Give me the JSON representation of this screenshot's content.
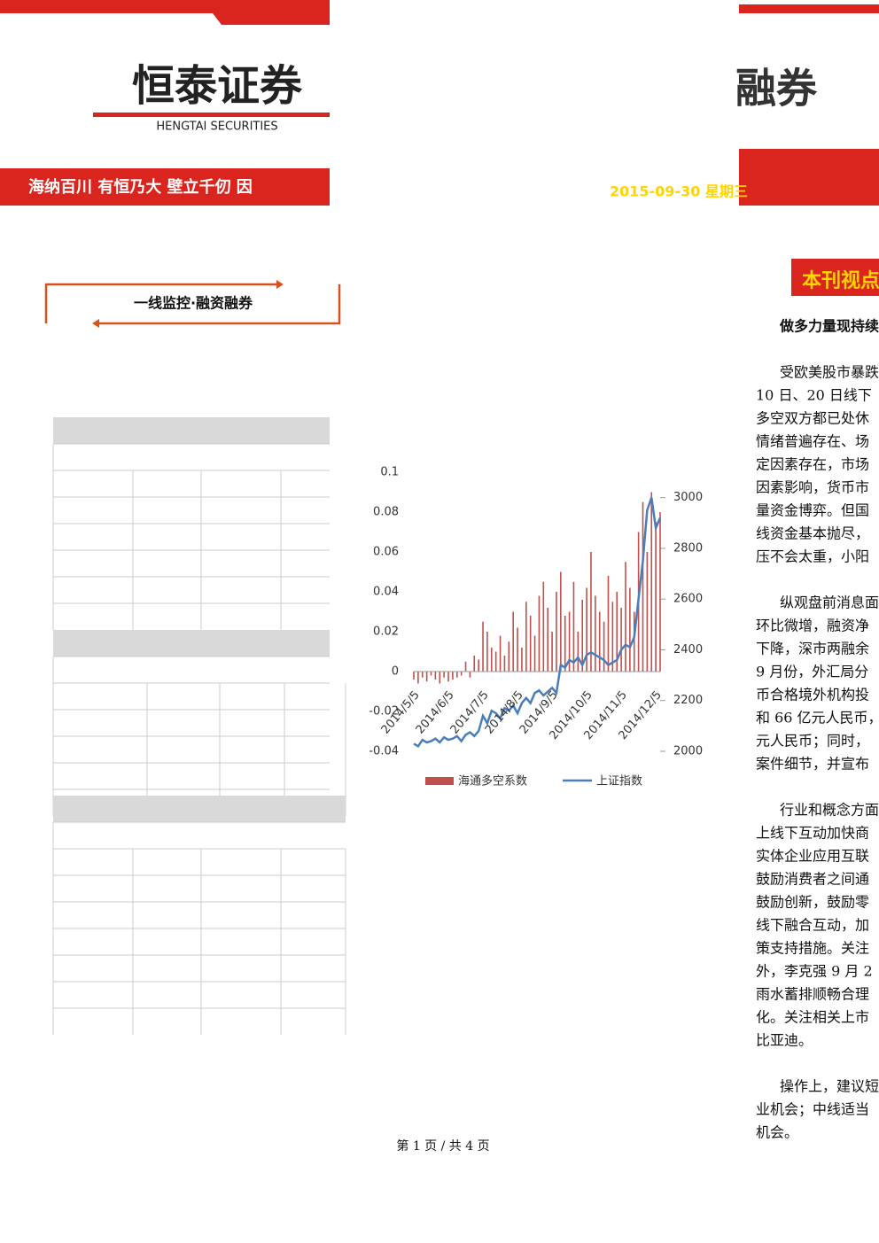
{
  "header": {
    "logo_cn": "恒泰证券",
    "logo_en": "HENGTAI SECURITIES",
    "slogan": "海纳百川 有恒乃大 壁立千仞 因",
    "right_logo": "融券",
    "date": "2015-09-30 星期三"
  },
  "box_title": "一线监控·融资融券",
  "section_title": "本刊视点",
  "headline": "做多力量现持续",
  "paragraphs": [
    [
      "受欧美股市暴跌",
      "10 日、20 日线下",
      "多空双方都已处休",
      "情绪普遍存在、场",
      "定因素存在，市场",
      "因素影响，货币市",
      "量资金博弈。但国",
      "线资金基本抛尽，",
      "压不会太重，小阳"
    ],
    [
      "纵观盘前消息面",
      "环比微增，融资净",
      "下降，深市两融余",
      "9 月份，外汇局分",
      "币合格境外机构投",
      "和 66 亿元人民币，",
      "元人民币；同时，",
      "案件细节，并宣布"
    ],
    [
      "行业和概念方面",
      "上线下互动加快商",
      "实体企业应用互联",
      "鼓励消费者之间通",
      "鼓励创新，鼓励零",
      "线下融合互动，加",
      "策支持措施。关注",
      "外，李克强 9 月 2",
      "雨水蓄排顺畅合理",
      "化。关注相关上市",
      "比亚迪。"
    ],
    [
      "操作上，建议短",
      "业机会；中线适当",
      "机会。"
    ]
  ],
  "chart_data": {
    "type": "bar-line",
    "categories": [
      "2014/5/5",
      null,
      null,
      null,
      null,
      null,
      null,
      null,
      "2014/6/5",
      null,
      null,
      null,
      null,
      null,
      null,
      null,
      "2014/7/5",
      null,
      null,
      null,
      null,
      null,
      null,
      null,
      "2014/8/5",
      null,
      null,
      null,
      null,
      null,
      null,
      null,
      "2014/9/5",
      null,
      null,
      null,
      null,
      null,
      null,
      null,
      "2014/10/5",
      null,
      null,
      null,
      null,
      null,
      null,
      null,
      "2014/11/5",
      null,
      null,
      null,
      null,
      null,
      null,
      null,
      "2014/12/5",
      null
    ],
    "series": [
      {
        "name": "海通多空系数",
        "color": "#c0504d",
        "values": [
          -0.004,
          -0.006,
          -0.003,
          -0.005,
          -0.002,
          -0.004,
          -0.006,
          -0.003,
          -0.005,
          -0.004,
          -0.003,
          -0.002,
          0.005,
          -0.003,
          0.008,
          0.006,
          0.025,
          0.02,
          0.012,
          0.01,
          0.018,
          0.008,
          0.015,
          0.03,
          0.022,
          0.012,
          0.035,
          0.028,
          0.018,
          0.038,
          0.045,
          0.032,
          0.02,
          0.04,
          0.05,
          0.028,
          0.03,
          0.045,
          0.02,
          0.036,
          0.042,
          0.06,
          0.038,
          0.03,
          0.025,
          0.048,
          0.035,
          0.04,
          0.032,
          0.055,
          0.042,
          0.03,
          0.07,
          0.085,
          0.06,
          0.09,
          0.075,
          0.08
        ]
      },
      {
        "name": "上证指数",
        "color": "#4a7ebb",
        "axis": "y2",
        "values": [
          2030,
          2020,
          2045,
          2035,
          2040,
          2050,
          2035,
          2055,
          2045,
          2050,
          2060,
          2040,
          2065,
          2075,
          2060,
          2080,
          2140,
          2110,
          2160,
          2150,
          2130,
          2170,
          2160,
          2180,
          2150,
          2190,
          2210,
          2190,
          2230,
          2240,
          2220,
          2235,
          2250,
          2230,
          2340,
          2330,
          2360,
          2350,
          2370,
          2340,
          2380,
          2390,
          2380,
          2370,
          2360,
          2340,
          2350,
          2360,
          2400,
          2420,
          2410,
          2450,
          2600,
          2750,
          2950,
          3000,
          2880,
          2920
        ]
      }
    ],
    "ylim": [
      -0.04,
      0.1
    ],
    "yticks": [
      -0.04,
      -0.02,
      0,
      0.02,
      0.04,
      0.06,
      0.08,
      0.1
    ],
    "y2lim": [
      2000,
      3100
    ],
    "y2ticks": [
      2000,
      2200,
      2400,
      2600,
      2800,
      3000
    ]
  },
  "footer": "第 1 页 / 共 4 页"
}
